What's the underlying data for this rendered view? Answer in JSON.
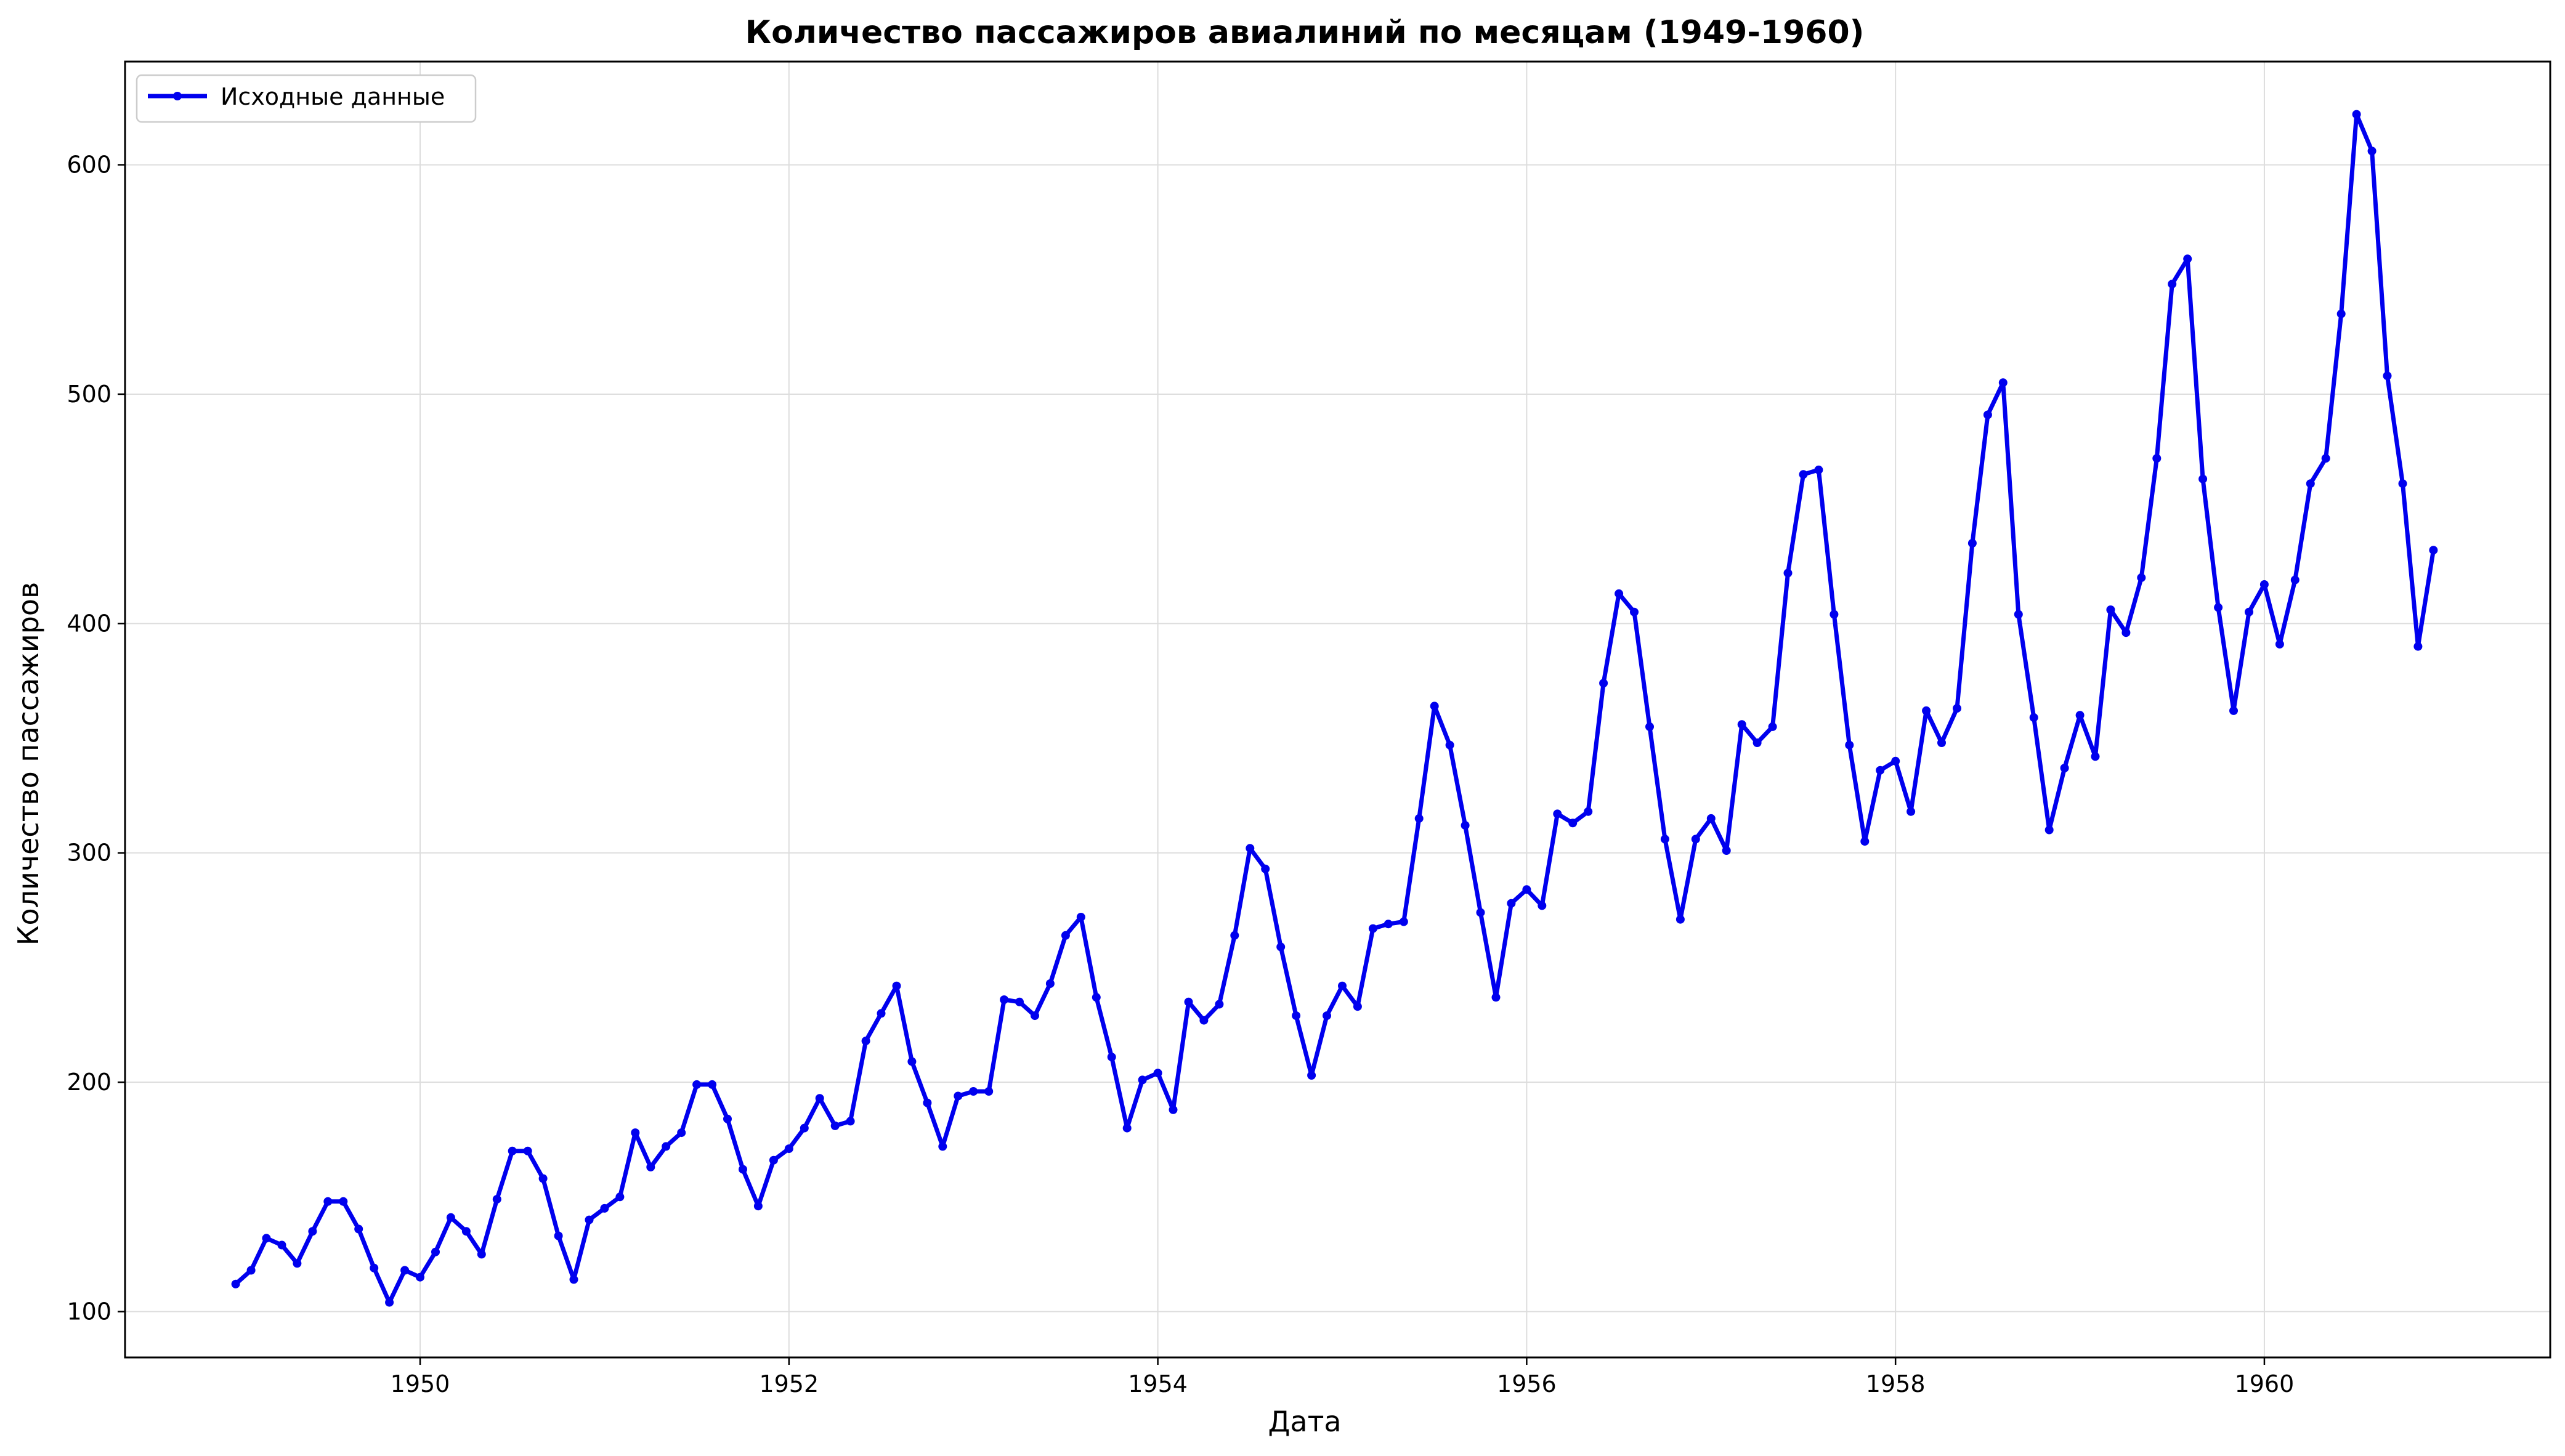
{
  "chart_data": {
    "type": "line",
    "title": "Количество пассажиров авиалиний по месяцам (1949-1960)",
    "xlabel": "Дата",
    "ylabel": "Количество пассажиров",
    "x_start": "1949-01",
    "x_end": "1960-12",
    "x_frequency": "monthly",
    "xlim": [
      1948.4,
      1961.55
    ],
    "ylim": [
      80,
      645
    ],
    "x_ticks": [
      1950,
      1952,
      1954,
      1956,
      1958,
      1960
    ],
    "y_ticks": [
      100,
      200,
      300,
      400,
      500,
      600
    ],
    "grid": true,
    "legend_position": "top-left",
    "series": [
      {
        "name": "Исходные данные",
        "color": "#0000ee",
        "marker": "circle",
        "values": [
          112,
          118,
          132,
          129,
          121,
          135,
          148,
          148,
          136,
          119,
          104,
          118,
          115,
          126,
          141,
          135,
          125,
          149,
          170,
          170,
          158,
          133,
          114,
          140,
          145,
          150,
          178,
          163,
          172,
          178,
          199,
          199,
          184,
          162,
          146,
          166,
          171,
          180,
          193,
          181,
          183,
          218,
          230,
          242,
          209,
          191,
          172,
          194,
          196,
          196,
          236,
          235,
          229,
          243,
          264,
          272,
          237,
          211,
          180,
          201,
          204,
          188,
          235,
          227,
          234,
          264,
          302,
          293,
          259,
          229,
          203,
          229,
          242,
          233,
          267,
          269,
          270,
          315,
          364,
          347,
          312,
          274,
          237,
          278,
          284,
          277,
          317,
          313,
          318,
          374,
          413,
          405,
          355,
          306,
          271,
          306,
          315,
          301,
          356,
          348,
          355,
          422,
          465,
          467,
          404,
          347,
          305,
          336,
          340,
          318,
          362,
          348,
          363,
          435,
          491,
          505,
          404,
          359,
          310,
          337,
          360,
          342,
          406,
          396,
          420,
          472,
          548,
          559,
          463,
          407,
          362,
          405,
          417,
          391,
          419,
          461,
          472,
          535,
          622,
          606,
          508,
          461,
          390,
          432
        ]
      }
    ]
  }
}
